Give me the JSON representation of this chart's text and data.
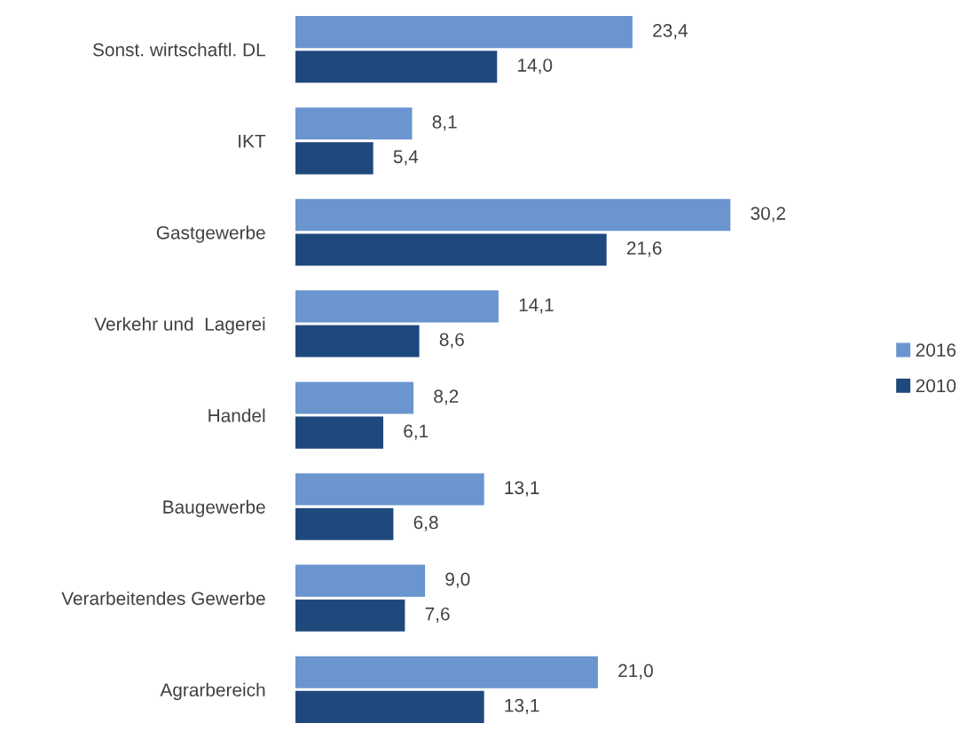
{
  "chart_data": {
    "type": "bar",
    "orientation": "horizontal",
    "categories": [
      "Sonst. wirtschaftl. DL",
      "IKT",
      "Gastgewerbe",
      "Verkehr und  Lagerei",
      "Handel",
      "Baugewerbe",
      "Verarbeitendes Gewerbe",
      "Agrarbereich"
    ],
    "series": [
      {
        "name": "2016",
        "color": "#6a95cf",
        "values": [
          23.4,
          8.1,
          30.2,
          14.1,
          8.2,
          13.1,
          9.0,
          21.0
        ],
        "value_labels": [
          "23,4",
          "8,1",
          "30,2",
          "14,1",
          "8,2",
          "13,1",
          "9,0",
          "21,0"
        ]
      },
      {
        "name": "2010",
        "color": "#1f497d",
        "values": [
          14.0,
          5.4,
          21.6,
          8.6,
          6.1,
          6.8,
          7.6,
          13.1
        ],
        "value_labels": [
          "14,0",
          "5,4",
          "21,6",
          "8,6",
          "6,1",
          "6,8",
          "7,6",
          "13,1"
        ]
      }
    ],
    "legend": "right",
    "grid": false
  }
}
